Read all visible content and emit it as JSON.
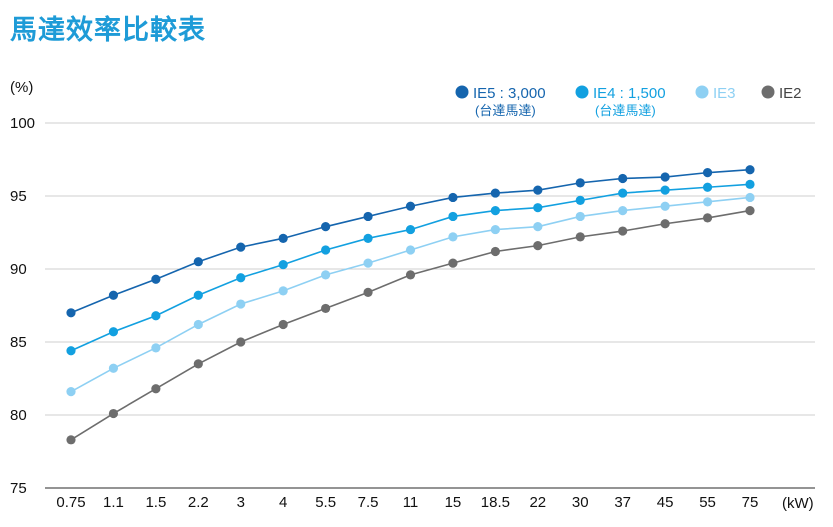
{
  "page": {
    "title": "馬達效率比較表"
  },
  "colors": {
    "title": "#1e9bd7",
    "grid": "#cfcfcf",
    "axis": "#555555",
    "text": "#111111"
  },
  "chart_data": {
    "type": "line",
    "title": "馬達效率比較表",
    "ylabel": "(%)",
    "xlabel": "(kW)",
    "ylim": [
      75,
      100
    ],
    "yticks": [
      75,
      80,
      85,
      90,
      95,
      100
    ],
    "grid": true,
    "legend_position": "top-right",
    "categories": [
      "0.75",
      "1.1",
      "1.5",
      "2.2",
      "3",
      "4",
      "5.5",
      "7.5",
      "11",
      "15",
      "18.5",
      "22",
      "30",
      "37",
      "45",
      "55",
      "75"
    ],
    "series": [
      {
        "name": "IE5 : 3,000",
        "sublabel": "(台達馬達)",
        "color": "#1565ae",
        "values": [
          87.0,
          88.2,
          89.3,
          90.5,
          91.5,
          92.1,
          92.9,
          93.6,
          94.3,
          94.9,
          95.2,
          95.4,
          95.9,
          96.2,
          96.3,
          96.6,
          96.8
        ]
      },
      {
        "name": "IE4 : 1,500",
        "sublabel": "(台達馬達)",
        "color": "#12a0e0",
        "values": [
          84.4,
          85.7,
          86.8,
          88.2,
          89.4,
          90.3,
          91.3,
          92.1,
          92.7,
          93.6,
          94.0,
          94.2,
          94.7,
          95.2,
          95.4,
          95.6,
          95.8
        ]
      },
      {
        "name": "IE3",
        "color": "#8ed0f3",
        "values": [
          81.6,
          83.2,
          84.6,
          86.2,
          87.6,
          88.5,
          89.6,
          90.4,
          91.3,
          92.2,
          92.7,
          92.9,
          93.6,
          94.0,
          94.3,
          94.6,
          94.9
        ]
      },
      {
        "name": "IE2",
        "color": "#6d6d6d",
        "values": [
          78.3,
          80.1,
          81.8,
          83.5,
          85.0,
          86.2,
          87.3,
          88.4,
          89.6,
          90.4,
          91.2,
          91.6,
          92.2,
          92.6,
          93.1,
          93.5,
          94.0
        ]
      }
    ]
  }
}
